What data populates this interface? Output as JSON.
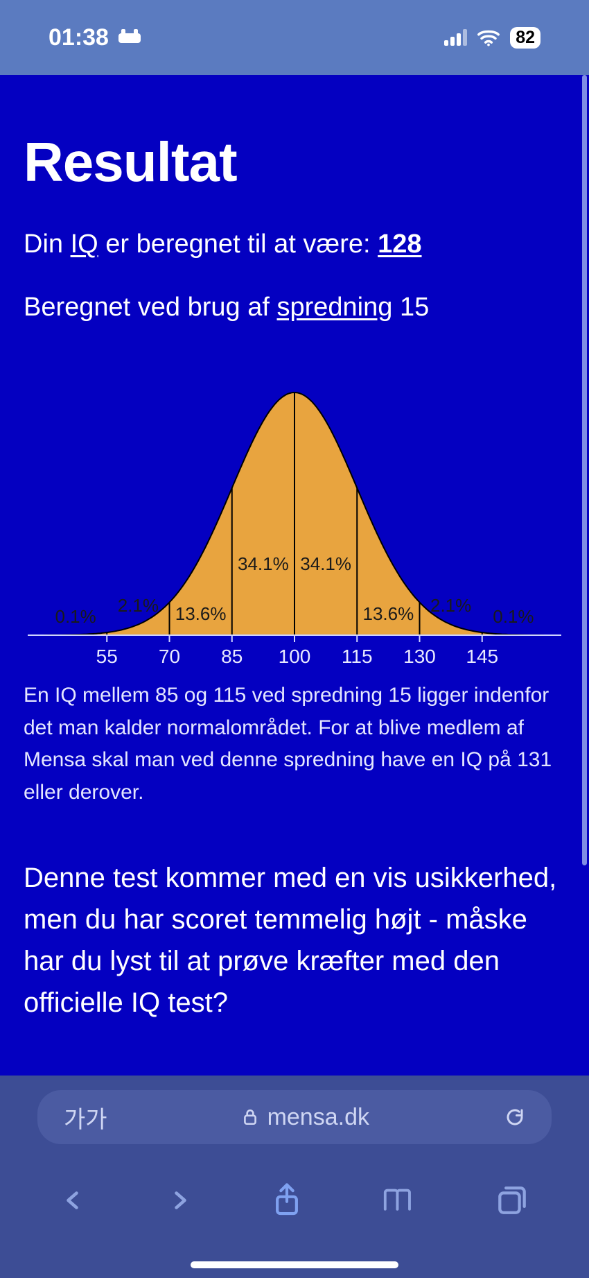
{
  "status": {
    "time": "01:38",
    "battery": "82"
  },
  "page": {
    "title": "Resultat",
    "line1_pre": "Din ",
    "line1_iq": "IQ",
    "line1_mid": " er beregnet til at være: ",
    "line1_val": "128",
    "line2_pre": "Beregnet ved brug af ",
    "line2_link": "spredning",
    "line2_post": " 15",
    "caption": "En IQ mellem 85 og 115 ved spredning 15 ligger indenfor det man kalder normalområdet. For at blive medlem af Mensa skal man ved denne spredning have en IQ på 131 eller derover.",
    "para": "Denne test kommer med en vis usikkerhed, men du har scoret temmelig højt - måske har du lyst til at prøve kræfter med den officielle IQ test?"
  },
  "chart": {
    "type": "bell-curve",
    "fill": "#e8a43f",
    "stroke": "#000000",
    "axis": "#cfd3ff",
    "label_color": "#1a1a1a",
    "tick_color": "#e8e9ff",
    "ticks": [
      "55",
      "70",
      "85",
      "100",
      "115",
      "130",
      "145"
    ],
    "segments": [
      {
        "label": "0.1%"
      },
      {
        "label": "2.1%"
      },
      {
        "label": "13.6%"
      },
      {
        "label": "34.1%"
      },
      {
        "label": "34.1%"
      },
      {
        "label": "13.6%"
      },
      {
        "label": "2.1%"
      },
      {
        "label": "0.1%"
      }
    ]
  },
  "browser": {
    "aa": "가가",
    "domain": "mensa.dk"
  }
}
